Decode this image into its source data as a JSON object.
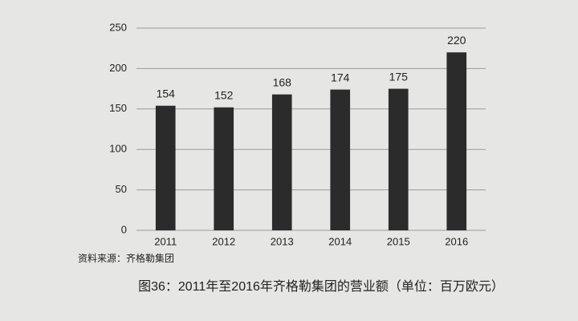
{
  "chart_data": {
    "type": "bar",
    "caption": "图36：2011年至2016年齐格勒集团的营业额（单位：百万欧元）",
    "source": "资料来源：齐格勒集团",
    "categories": [
      "2011",
      "2012",
      "2013",
      "2014",
      "2015",
      "2016"
    ],
    "values": [
      154,
      152,
      168,
      174,
      175,
      220
    ],
    "color": "#2b2b2b",
    "ylim": [
      0,
      250
    ],
    "yticks": [
      0,
      50,
      100,
      150,
      200,
      250
    ],
    "grid": true
  }
}
